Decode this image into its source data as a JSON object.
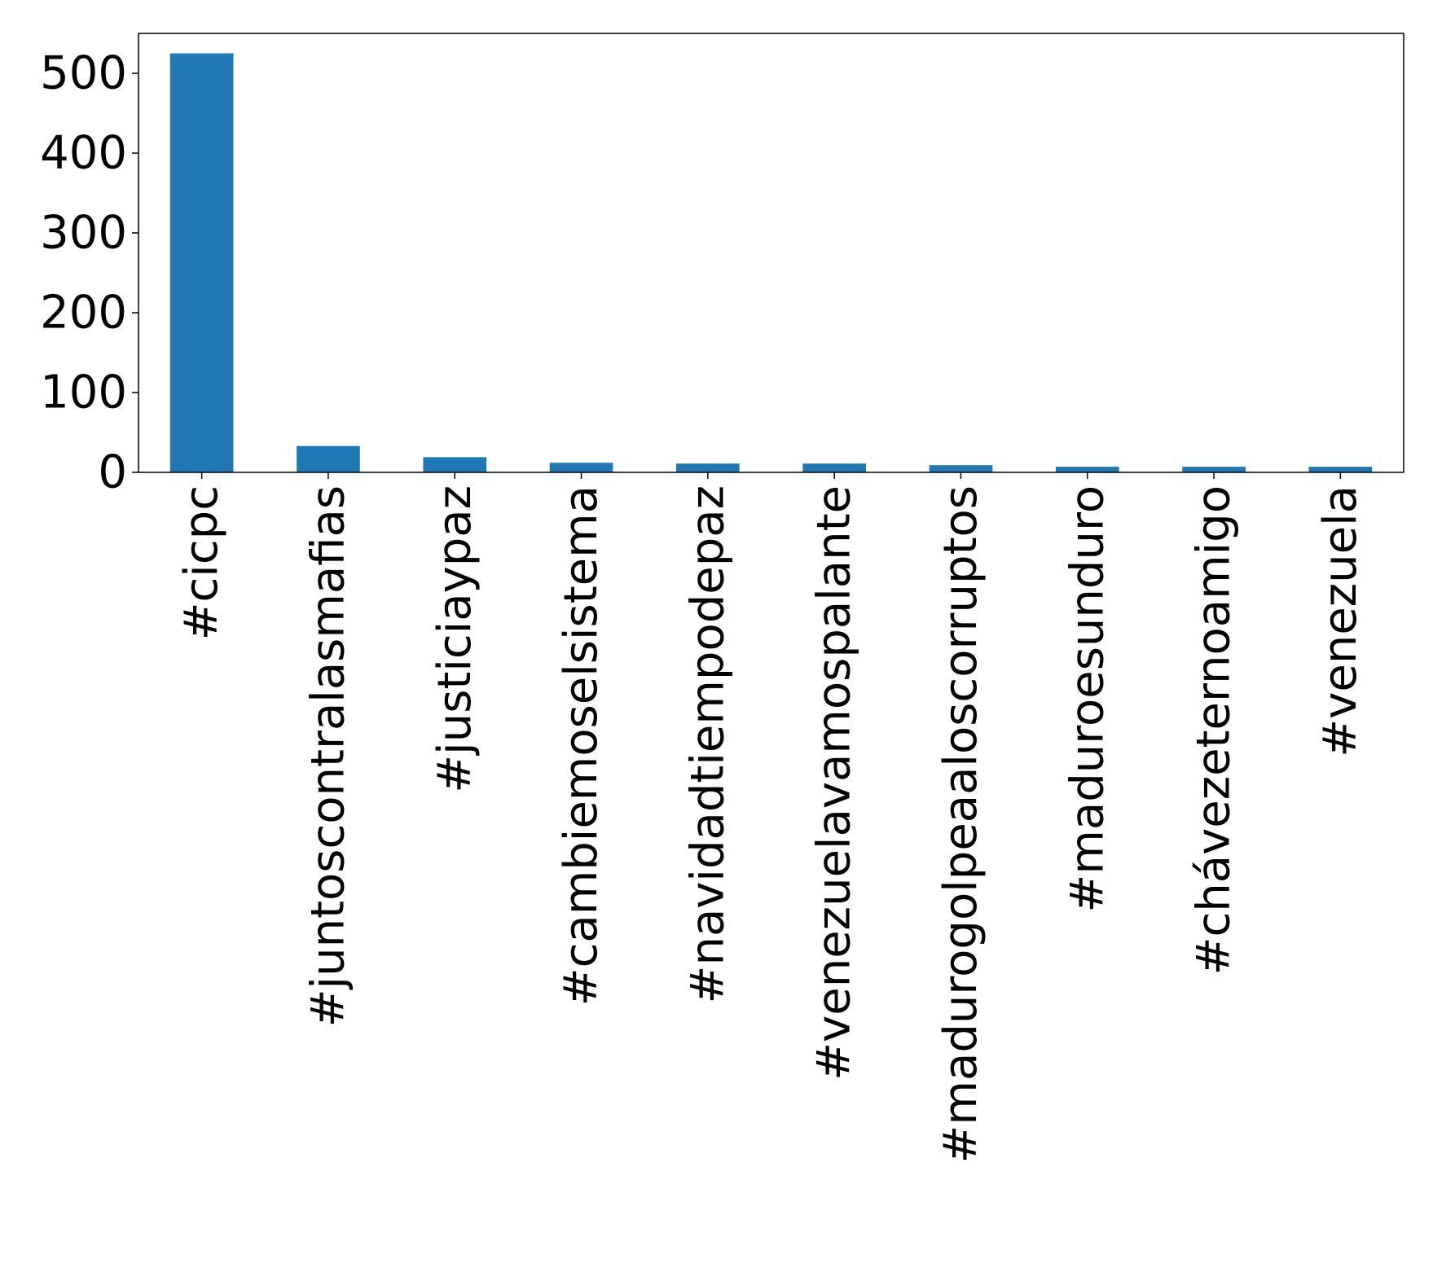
{
  "chart_data": {
    "type": "bar",
    "title": "",
    "xlabel": "",
    "ylabel": "",
    "categories": [
      "#cicpc",
      "#juntoscontralasmafias",
      "#justiciaypaz",
      "#cambiemoselsistema",
      "#navidadtiempodepaz",
      "#venezuelavamospalante",
      "#madurogolpeaaloscorruptos",
      "#maduroesunduro",
      "#chávezeternoamigo",
      "#venezuela"
    ],
    "values": [
      525,
      33,
      19,
      12,
      11,
      11,
      9,
      7,
      7,
      7
    ],
    "ylim": [
      0,
      550
    ],
    "yticks": [
      "0",
      "100",
      "200",
      "300",
      "400",
      "500"
    ],
    "bar_color": "#1f77b4",
    "grid": false,
    "legend": "none"
  }
}
